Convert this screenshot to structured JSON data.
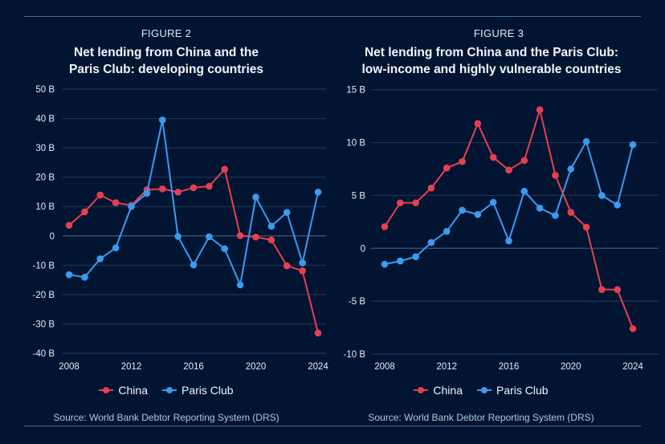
{
  "colors": {
    "china": "#e5404f",
    "paris_club": "#3a9bf0",
    "background": "#011533"
  },
  "chart_data": [
    {
      "type": "line",
      "figure_label": "FIGURE 2",
      "title": "Net lending from China and the Paris Club: developing countries",
      "title_lines": [
        "Net lending from China and the",
        "Paris Club: developing countries"
      ],
      "xlabel": "",
      "ylabel": "",
      "x": [
        2008,
        2009,
        2010,
        2011,
        2012,
        2013,
        2014,
        2015,
        2016,
        2017,
        2018,
        2019,
        2020,
        2021,
        2022,
        2023,
        2024
      ],
      "xticks": [
        2008,
        2012,
        2016,
        2020,
        2024
      ],
      "xtick_labels": [
        "2008",
        "2012",
        "2016",
        "2020",
        "2024"
      ],
      "ylim": [
        -40,
        50
      ],
      "yticks": [
        50,
        40,
        30,
        20,
        10,
        0,
        -10,
        -20,
        -30,
        -40
      ],
      "ytick_labels": [
        "50 B",
        "40 B",
        "30 B",
        "20 B",
        "10 B",
        "0",
        "-10 B",
        "-20 B",
        "-30 B",
        "-40 B"
      ],
      "unit": "billion USD",
      "grid": true,
      "legend_position": "bottom-center",
      "series": [
        {
          "name": "China",
          "values": [
            3.6,
            8.2,
            13.9,
            11.3,
            10.4,
            15.7,
            16.0,
            14.9,
            16.4,
            16.9,
            22.7,
            0.1,
            -0.4,
            -1.4,
            -10.2,
            -11.9,
            -33.1
          ]
        },
        {
          "name": "Paris Club",
          "values": [
            -13.2,
            -14.1,
            -7.8,
            -4.1,
            10.0,
            14.5,
            39.5,
            -0.2,
            -9.9,
            -0.3,
            -4.4,
            -16.7,
            13.2,
            3.3,
            8.0,
            -9.2,
            14.9
          ]
        }
      ],
      "source": "Source: World Bank Debtor Reporting System (DRS)"
    },
    {
      "type": "line",
      "figure_label": "FIGURE 3",
      "title": "Net lending from China and the Paris Club: low-income and highly vulnerable countries",
      "title_lines": [
        "Net lending from China and the Paris Club:",
        "low-income and highly vulnerable countries"
      ],
      "xlabel": "",
      "ylabel": "",
      "x": [
        2008,
        2009,
        2010,
        2011,
        2012,
        2013,
        2014,
        2015,
        2016,
        2017,
        2018,
        2019,
        2020,
        2021,
        2022,
        2023,
        2024
      ],
      "xticks": [
        2008,
        2012,
        2016,
        2020,
        2024
      ],
      "xtick_labels": [
        "2008",
        "2012",
        "2016",
        "2020",
        "2024"
      ],
      "ylim": [
        -10,
        15
      ],
      "yticks": [
        15,
        10,
        5,
        0,
        -5,
        -10
      ],
      "ytick_labels": [
        "15 B",
        "10 B",
        "5 B",
        "0",
        "-5 B",
        "-10 B"
      ],
      "unit": "billion USD",
      "grid": true,
      "legend_position": "bottom-center",
      "series": [
        {
          "name": "China",
          "values": [
            2.05,
            4.3,
            4.3,
            5.7,
            7.6,
            8.2,
            11.8,
            8.6,
            7.4,
            8.3,
            13.1,
            6.9,
            3.4,
            2.0,
            -3.9,
            -3.9,
            -7.6
          ]
        },
        {
          "name": "Paris Club",
          "values": [
            -1.5,
            -1.2,
            -0.8,
            0.55,
            1.6,
            3.6,
            3.2,
            4.35,
            0.7,
            5.4,
            3.8,
            3.1,
            7.5,
            10.1,
            5.0,
            4.1,
            9.8
          ]
        }
      ],
      "source": "Source: World Bank Debtor Reporting System (DRS)"
    }
  ]
}
